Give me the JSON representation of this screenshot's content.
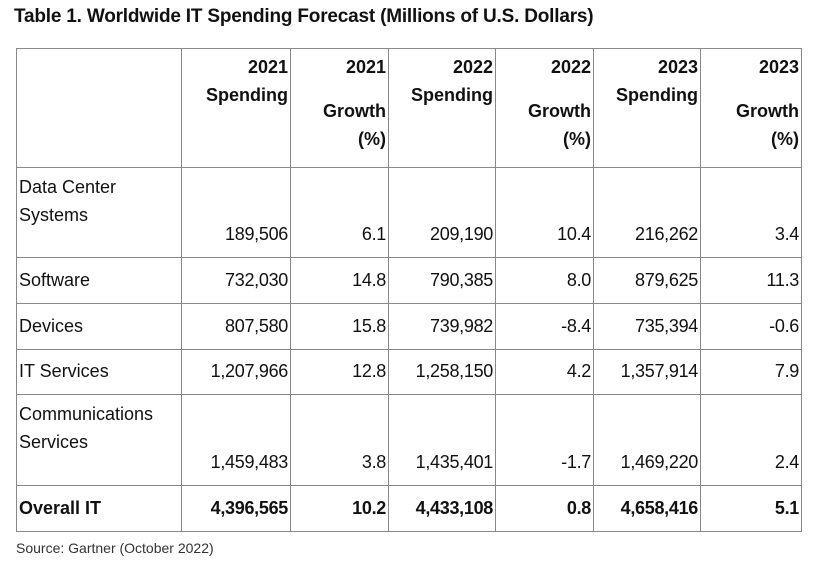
{
  "title": "Table 1. Worldwide IT Spending Forecast (Millions of U.S. Dollars)",
  "header": [
    {
      "year": "2021",
      "label": "Spending",
      "type": "spending"
    },
    {
      "year": "2021",
      "label": "Growth",
      "unit": "(%)",
      "type": "growth"
    },
    {
      "year": "2022",
      "label": "Spending",
      "type": "spending"
    },
    {
      "year": "2022",
      "label": "Growth",
      "unit": "(%)",
      "type": "growth"
    },
    {
      "year": "2023",
      "label": "Spending",
      "type": "spending"
    },
    {
      "year": "2023",
      "label": "Growth",
      "unit": "(%)",
      "type": "growth"
    }
  ],
  "rows": [
    {
      "label": "Data Center Systems",
      "values": [
        "189,506",
        "6.1",
        "209,190",
        "10.4",
        "216,262",
        "3.4"
      ]
    },
    {
      "label": "Software",
      "values": [
        "732,030",
        "14.8",
        "790,385",
        "8.0",
        "879,625",
        "11.3"
      ]
    },
    {
      "label": "Devices",
      "values": [
        "807,580",
        "15.8",
        "739,982",
        "-8.4",
        "735,394",
        "-0.6"
      ]
    },
    {
      "label": "IT Services",
      "values": [
        "1,207,966",
        "12.8",
        "1,258,150",
        "4.2",
        "1,357,914",
        "7.9"
      ]
    },
    {
      "label": "Communications Services",
      "values": [
        "1,459,483",
        "3.8",
        "1,435,401",
        "-1.7",
        "1,469,220",
        "2.4"
      ]
    },
    {
      "label": "Overall IT",
      "values": [
        "4,396,565",
        "10.2",
        "4,433,108",
        "0.8",
        "4,658,416",
        "5.1"
      ]
    }
  ],
  "source": "Source: Gartner (October 2022)"
}
